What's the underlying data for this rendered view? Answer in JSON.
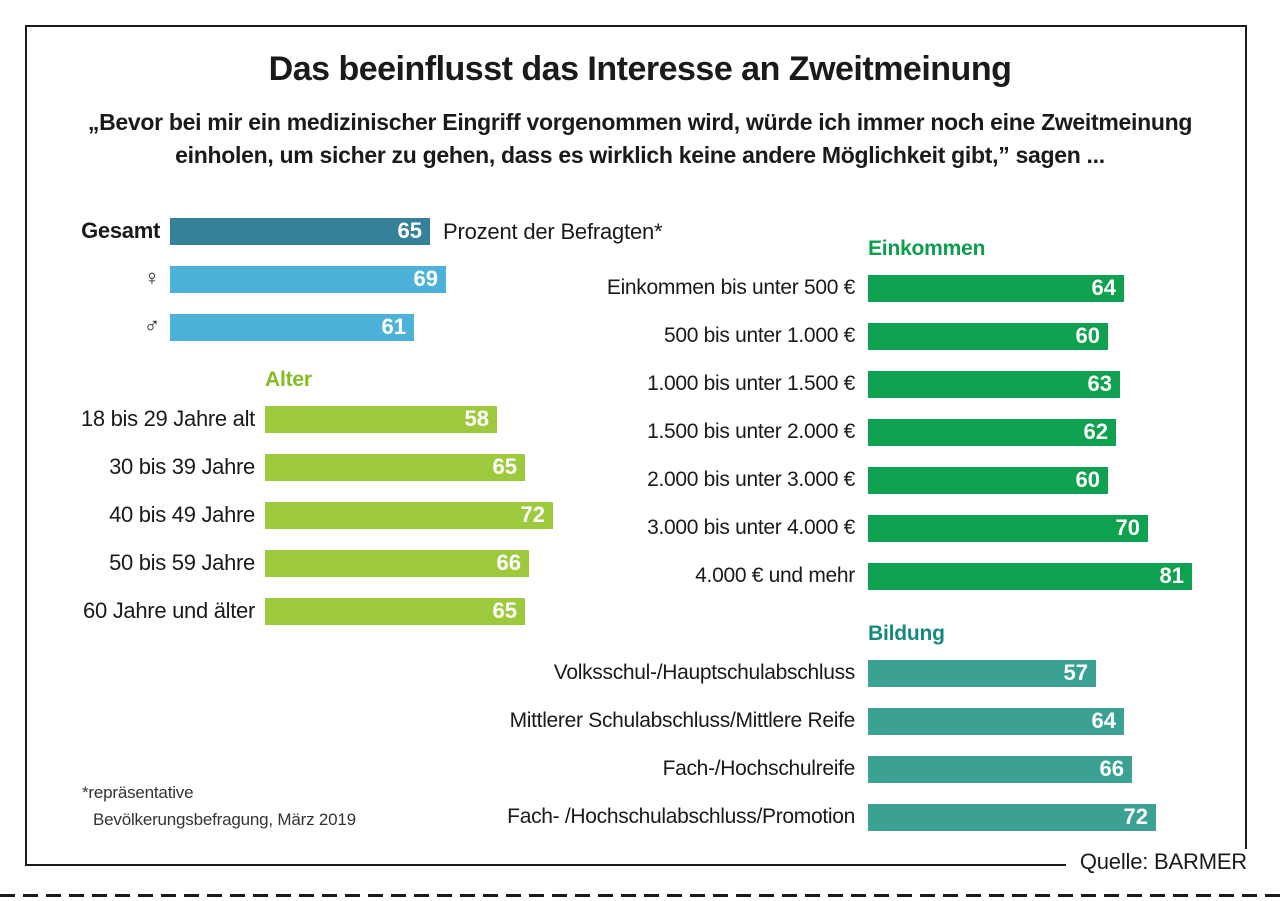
{
  "footnote_line1": "*repräsentative",
  "footnote_line2": "Bevölkerungsbefragung, März 2019",
  "source": "Quelle: BARMER",
  "chart_data": {
    "type": "bar",
    "orientation": "horizontal",
    "title": "Das beeinflusst das Interesse an Zweitmeinung",
    "subtitle_line1": "„Bevor bei mir ein medizinischer Eingriff vorgenommen wird, würde ich immer noch eine Zweitmeinung",
    "subtitle_line2": "einholen, um sicher zu gehen, dass es wirklich keine andere Möglichkeit gibt,” sagen ...",
    "unit_label": "Prozent der Befragten*",
    "value_unit": "Prozent",
    "legend_position": "none",
    "grid": false,
    "colors": {
      "total": "#35819a",
      "gender": "#4db2d9",
      "alter_bars": "#9dca3d",
      "alter_header": "#85bb25",
      "einkommen": "#0ea14f",
      "bildung_bars": "#3aa193",
      "bildung_header": "#16897f"
    },
    "groups": [
      {
        "id": "total",
        "rows": [
          {
            "label": "Gesamt",
            "bold": true,
            "value": 65,
            "color": "#35819a"
          },
          {
            "label": "♀",
            "symbol": true,
            "value": 69,
            "color": "#4db2d9"
          },
          {
            "label": "♂",
            "symbol": true,
            "value": 61,
            "color": "#4db2d9"
          }
        ]
      },
      {
        "id": "alter",
        "header": "Alter",
        "header_color": "#85bb25",
        "bar_color": "#9dca3d",
        "rows": [
          {
            "label": "18 bis 29 Jahre alt",
            "value": 58
          },
          {
            "label": "30 bis 39 Jahre",
            "value": 65
          },
          {
            "label": "40 bis 49 Jahre",
            "value": 72
          },
          {
            "label": "50 bis 59 Jahre",
            "value": 66
          },
          {
            "label": "60 Jahre und älter",
            "value": 65
          }
        ]
      },
      {
        "id": "einkommen",
        "header": "Einkommen",
        "header_color": "#0c9e4c",
        "bar_color": "#0ea14f",
        "rows": [
          {
            "label": "Einkommen bis unter 500 €",
            "value": 64
          },
          {
            "label": "500 bis unter 1.000 €",
            "value": 60
          },
          {
            "label": "1.000 bis unter 1.500 €",
            "value": 63
          },
          {
            "label": "1.500 bis unter 2.000 €",
            "value": 62
          },
          {
            "label": "2.000 bis unter 3.000 €",
            "value": 60
          },
          {
            "label": "3.000 bis unter 4.000 €",
            "value": 70
          },
          {
            "label": "4.000 € und mehr",
            "value": 81
          }
        ]
      },
      {
        "id": "bildung",
        "header": "Bildung",
        "header_color": "#16897f",
        "bar_color": "#3aa193",
        "rows": [
          {
            "label": "Volksschul-/Hauptschulabschluss",
            "value": 57
          },
          {
            "label": "Mittlerer Schulabschluss/Mittlere Reife",
            "value": 64
          },
          {
            "label": "Fach-/Hochschulreife",
            "value": 66
          },
          {
            "label": "Fach- /Hochschulabschluss/Promotion",
            "value": 72
          }
        ]
      }
    ]
  }
}
